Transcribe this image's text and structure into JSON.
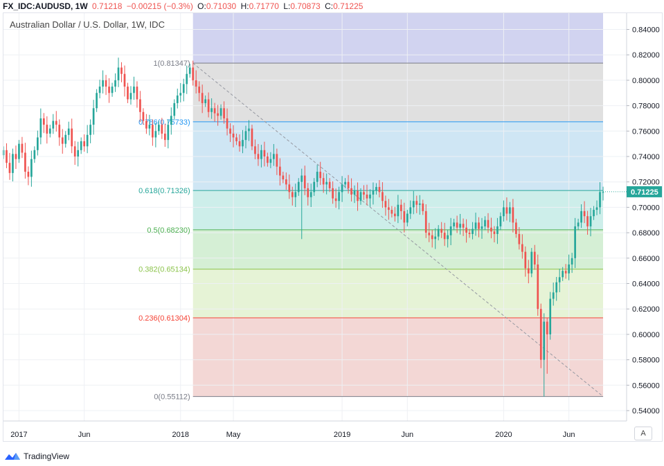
{
  "header": {
    "symbol": "FX_IDC:AUDUSD, 1W",
    "last": "0.71218",
    "change": "−0.00215 (−0.3%)",
    "o_label": "O:",
    "o": "0.71030",
    "h_label": "H:",
    "h": "0.71770",
    "l_label": "L:",
    "l": "0.70873",
    "c_label": "C:",
    "c": "0.71225"
  },
  "chart_title": "Australian Dollar / U.S. Dollar, 1W, IDC",
  "auto_button": "A",
  "footer": {
    "brand": "TradingView",
    "logo_icon": "tradingview-logo-icon"
  },
  "chart_data": {
    "type": "candlestick",
    "y_axis": {
      "range": [
        0.53,
        0.85
      ],
      "ticks": [
        "0.84000",
        "0.82000",
        "0.80000",
        "0.78000",
        "0.76000",
        "0.74000",
        "0.72000",
        "0.70000",
        "0.68000",
        "0.66000",
        "0.64000",
        "0.62000",
        "0.60000",
        "0.58000",
        "0.56000",
        "0.54000"
      ],
      "last_price_label": "0.71225",
      "last_price": 0.71225
    },
    "x_axis": {
      "labels": [
        {
          "text": "2017",
          "week": 5
        },
        {
          "text": "Jun",
          "week": 26
        },
        {
          "text": "2018",
          "week": 57
        },
        {
          "text": "May",
          "week": 74
        },
        {
          "text": "2019",
          "week": 109
        },
        {
          "text": "Jun",
          "week": 130
        },
        {
          "text": "2020",
          "week": 161
        },
        {
          "text": "Jun",
          "week": 182
        }
      ],
      "weeks_visible": 194
    },
    "fibonacci": {
      "start_week": 61,
      "end_week": 193,
      "levels": [
        {
          "label": "1(0.81347)",
          "value": 0.81347,
          "color": "#787b86",
          "fill": "#e0e0e0"
        },
        {
          "label": "0.786(0.76733)",
          "value": 0.76733,
          "color": "#2196f3",
          "fill": "#cfe6f4"
        },
        {
          "label": "0.618(0.71326)",
          "value": 0.71326,
          "color": "#26a69a",
          "fill": "#cdeeea"
        },
        {
          "label": "0.5(0.68230)",
          "value": 0.6823,
          "color": "#4caf50",
          "fill": "#d5efd5"
        },
        {
          "label": "0.382(0.65134)",
          "value": 0.65134,
          "color": "#8bc34a",
          "fill": "#e6f3d6"
        },
        {
          "label": "0.236(0.61304)",
          "value": 0.61304,
          "color": "#f44336",
          "fill": "#f3d7d5"
        },
        {
          "label": "0(0.55112)",
          "value": 0.55112,
          "color": "#787b86",
          "fill": null
        }
      ],
      "top_extension_fill": "#d1d3f0",
      "trend_line": {
        "from_week": 61,
        "from_value": 0.81347,
        "to_week": 193,
        "to_value": 0.55112
      }
    },
    "colors": {
      "up": "#26a69a",
      "down": "#ef5350"
    },
    "closes": [
      0.745,
      0.735,
      0.727,
      0.742,
      0.738,
      0.75,
      0.743,
      0.728,
      0.724,
      0.738,
      0.745,
      0.755,
      0.77,
      0.765,
      0.758,
      0.762,
      0.768,
      0.765,
      0.755,
      0.75,
      0.757,
      0.762,
      0.748,
      0.74,
      0.745,
      0.752,
      0.748,
      0.757,
      0.765,
      0.778,
      0.79,
      0.795,
      0.8,
      0.795,
      0.79,
      0.795,
      0.8,
      0.81,
      0.805,
      0.795,
      0.785,
      0.79,
      0.795,
      0.785,
      0.775,
      0.768,
      0.762,
      0.765,
      0.755,
      0.76,
      0.765,
      0.758,
      0.753,
      0.765,
      0.772,
      0.782,
      0.788,
      0.79,
      0.797,
      0.805,
      0.81,
      0.8,
      0.795,
      0.79,
      0.782,
      0.785,
      0.775,
      0.778,
      0.774,
      0.772,
      0.778,
      0.77,
      0.762,
      0.758,
      0.755,
      0.752,
      0.748,
      0.753,
      0.76,
      0.762,
      0.748,
      0.742,
      0.738,
      0.745,
      0.74,
      0.735,
      0.738,
      0.742,
      0.732,
      0.725,
      0.722,
      0.718,
      0.712,
      0.708,
      0.712,
      0.72,
      0.725,
      0.715,
      0.708,
      0.712,
      0.72,
      0.728,
      0.723,
      0.718,
      0.72,
      0.715,
      0.707,
      0.705,
      0.712,
      0.718,
      0.72,
      0.715,
      0.71,
      0.713,
      0.705,
      0.712,
      0.71,
      0.707,
      0.71,
      0.713,
      0.716,
      0.712,
      0.705,
      0.7,
      0.698,
      0.695,
      0.693,
      0.702,
      0.697,
      0.688,
      0.695,
      0.7,
      0.705,
      0.702,
      0.703,
      0.697,
      0.68,
      0.678,
      0.675,
      0.677,
      0.683,
      0.68,
      0.675,
      0.678,
      0.685,
      0.688,
      0.684,
      0.687,
      0.684,
      0.68,
      0.679,
      0.683,
      0.688,
      0.683,
      0.685,
      0.69,
      0.684,
      0.681,
      0.679,
      0.685,
      0.693,
      0.7,
      0.695,
      0.7,
      0.688,
      0.679,
      0.671,
      0.665,
      0.652,
      0.648,
      0.665,
      0.655,
      0.62,
      0.58,
      0.61,
      0.6,
      0.628,
      0.633,
      0.641,
      0.645,
      0.65,
      0.648,
      0.655,
      0.66,
      0.685,
      0.688,
      0.697,
      0.693,
      0.685,
      0.693,
      0.698,
      0.7,
      0.712,
      0.712
    ]
  }
}
